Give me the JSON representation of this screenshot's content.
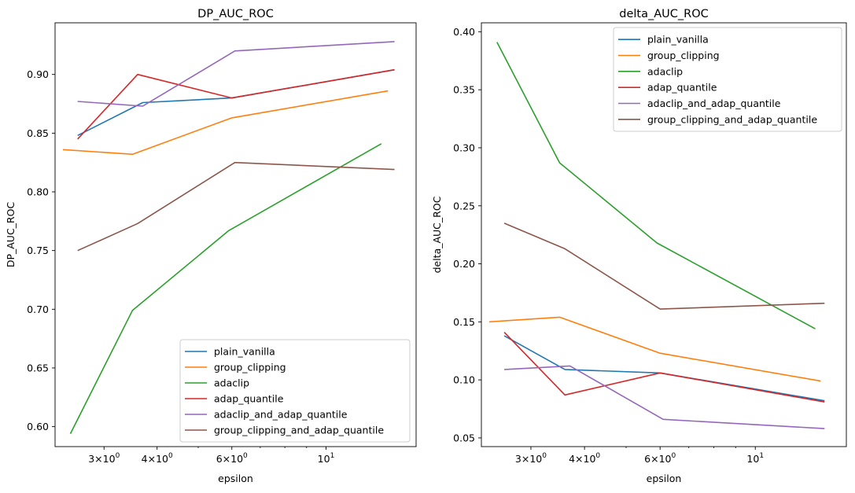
{
  "chart_data": [
    {
      "type": "line",
      "title": "DP_AUC_ROC",
      "xlabel": "epsilon",
      "ylabel": "DP_AUC_ROC",
      "xscale": "log",
      "xlim": [
        2.3,
        16.3
      ],
      "ylim": [
        0.583,
        0.944
      ],
      "yticks": [
        "0.60",
        "0.65",
        "0.70",
        "0.75",
        "0.80",
        "0.85",
        "0.90"
      ],
      "xticks": [
        {
          "base": "3×10",
          "exp": "0",
          "value": 3
        },
        {
          "base": "4×10",
          "exp": "0",
          "value": 4
        },
        {
          "base": "6×10",
          "exp": "0",
          "value": 6
        },
        {
          "base": "10",
          "exp": "1",
          "value": 10
        }
      ],
      "legend_position": "lower-right",
      "series": [
        {
          "name": "plain_vanilla",
          "color": "#1f77b4",
          "x": [
            2.6,
            3.7,
            6.0,
            14.5
          ],
          "y": [
            0.848,
            0.876,
            0.88,
            0.904
          ]
        },
        {
          "name": "group_clipping",
          "color": "#ff7f0e",
          "x": [
            2.4,
            3.5,
            6.0,
            14.0
          ],
          "y": [
            0.836,
            0.832,
            0.863,
            0.886
          ]
        },
        {
          "name": "adaclip",
          "color": "#2ca02c",
          "x": [
            2.5,
            3.5,
            5.9,
            13.5
          ],
          "y": [
            0.594,
            0.699,
            0.767,
            0.841
          ]
        },
        {
          "name": "adap_quantile",
          "color": "#d62728",
          "x": [
            2.6,
            3.6,
            6.0,
            14.5
          ],
          "y": [
            0.845,
            0.9,
            0.88,
            0.904
          ]
        },
        {
          "name": "adaclip_and_adap_quantile",
          "color": "#9467bd",
          "x": [
            2.6,
            3.7,
            6.1,
            14.5
          ],
          "y": [
            0.877,
            0.873,
            0.92,
            0.928
          ]
        },
        {
          "name": "group_clipping_and_adap_quantile",
          "color": "#8c564b",
          "x": [
            2.6,
            3.6,
            6.1,
            14.5
          ],
          "y": [
            0.75,
            0.773,
            0.825,
            0.819
          ]
        }
      ]
    },
    {
      "type": "line",
      "title": "delta_AUC_ROC",
      "xlabel": "epsilon",
      "ylabel": "delta_AUC_ROC",
      "xscale": "log",
      "xlim": [
        2.3,
        16.3
      ],
      "ylim": [
        0.0425,
        0.4077
      ],
      "yticks": [
        "0.05",
        "0.10",
        "0.15",
        "0.20",
        "0.25",
        "0.30",
        "0.35",
        "0.40"
      ],
      "xticks": [
        {
          "base": "3×10",
          "exp": "0",
          "value": 3
        },
        {
          "base": "4×10",
          "exp": "0",
          "value": 4
        },
        {
          "base": "6×10",
          "exp": "0",
          "value": 6
        },
        {
          "base": "10",
          "exp": "1",
          "value": 10
        }
      ],
      "legend_position": "upper-right",
      "series": [
        {
          "name": "plain_vanilla",
          "color": "#1f77b4",
          "x": [
            2.6,
            3.6,
            6.0,
            14.5
          ],
          "y": [
            0.138,
            0.109,
            0.106,
            0.082
          ]
        },
        {
          "name": "group_clipping",
          "color": "#ff7f0e",
          "x": [
            2.4,
            3.5,
            6.0,
            14.2
          ],
          "y": [
            0.15,
            0.154,
            0.123,
            0.099
          ]
        },
        {
          "name": "adaclip",
          "color": "#2ca02c",
          "x": [
            2.5,
            3.5,
            5.9,
            13.8
          ],
          "y": [
            0.391,
            0.287,
            0.218,
            0.144
          ]
        },
        {
          "name": "adap_quantile",
          "color": "#d62728",
          "x": [
            2.6,
            3.6,
            6.0,
            14.5
          ],
          "y": [
            0.141,
            0.087,
            0.106,
            0.081
          ]
        },
        {
          "name": "adaclip_and_adap_quantile",
          "color": "#9467bd",
          "x": [
            2.6,
            3.7,
            6.1,
            14.5
          ],
          "y": [
            0.109,
            0.112,
            0.066,
            0.058
          ]
        },
        {
          "name": "group_clipping_and_adap_quantile",
          "color": "#8c564b",
          "x": [
            2.6,
            3.6,
            6.0,
            14.5
          ],
          "y": [
            0.235,
            0.213,
            0.161,
            0.166
          ]
        }
      ]
    }
  ]
}
